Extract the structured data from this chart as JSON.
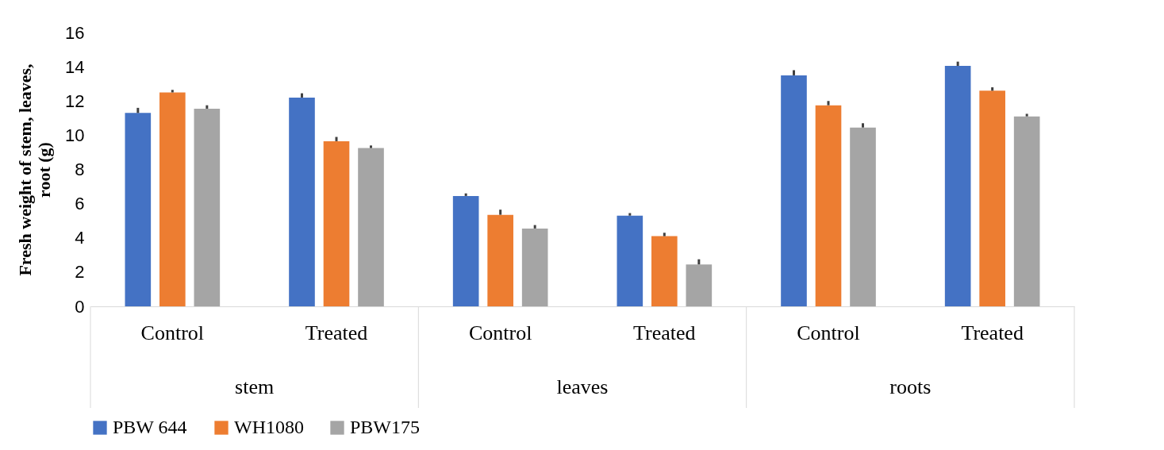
{
  "chart_data": {
    "type": "bar",
    "ylabel": "Fresh weight of stem, leaves, root (g)",
    "categories": [
      "Control",
      "Treated",
      "Control",
      "Treated",
      "Control",
      "Treated"
    ],
    "annotations": [
      "stem",
      "leaves",
      "roots"
    ],
    "series": [
      {
        "name": "PBW 644",
        "color": "#4472c4",
        "values": [
          11.3,
          12.2,
          6.45,
          5.3,
          13.5,
          14.05
        ],
        "errors": [
          [
            11.3,
            11.6
          ],
          [
            12.2,
            12.45
          ],
          [
            6.45,
            6.6
          ],
          [
            5.3,
            5.45
          ],
          [
            13.5,
            13.8
          ],
          [
            14.05,
            14.3
          ]
        ]
      },
      {
        "name": "WH1080",
        "color": "#ed7d31",
        "values": [
          12.5,
          9.65,
          5.35,
          4.1,
          11.75,
          12.6
        ],
        "errors": [
          [
            12.5,
            12.65
          ],
          [
            9.65,
            9.9
          ],
          [
            5.35,
            5.65
          ],
          [
            4.1,
            4.3
          ],
          [
            11.75,
            12.0
          ],
          [
            12.6,
            12.8
          ]
        ]
      },
      {
        "name": "PBW175",
        "color": "#a5a5a5",
        "values": [
          11.55,
          9.25,
          4.55,
          2.45,
          10.45,
          11.1
        ],
        "errors": [
          [
            11.55,
            11.75
          ],
          [
            9.25,
            9.4
          ],
          [
            4.55,
            4.75
          ],
          [
            2.45,
            2.75
          ],
          [
            10.45,
            10.7
          ],
          [
            11.1,
            11.25
          ]
        ]
      }
    ],
    "ylim": [
      0,
      16
    ],
    "yticks": [
      0,
      2,
      4,
      6,
      8,
      10,
      12,
      14,
      16
    ],
    "grid": false,
    "legend": "bottom"
  }
}
